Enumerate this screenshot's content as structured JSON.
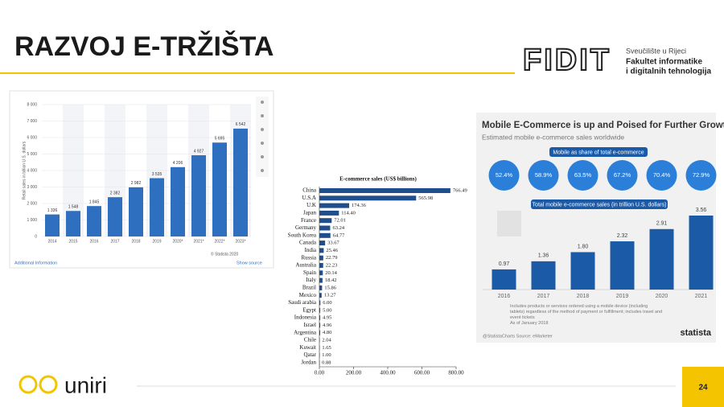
{
  "slide": {
    "title": "RAZVOJ E-TRŽIŠTA",
    "logo": "FIDIT",
    "university": "Sveučilište u Rijeci",
    "faculty_line1": "Fakultet informatike",
    "faculty_line2": "i digitalnih tehnologija",
    "footer_logo": "uniri",
    "page_number": "24"
  },
  "chart_data": [
    {
      "type": "bar",
      "ylabel": "Retail sales in billion U.S. dollars",
      "categories": [
        "2014",
        "2015",
        "2016",
        "2017",
        "2018",
        "2019",
        "2020*",
        "2021*",
        "2022*",
        "2023*"
      ],
      "values": [
        1336,
        1548,
        1845,
        2382,
        2982,
        3535,
        4206,
        4927,
        5695,
        6542
      ],
      "value_labels": [
        "1 336",
        "1 548",
        "1 845",
        "2 382",
        "2 982",
        "3 535",
        "4 206",
        "4 927",
        "5 695",
        "6 542"
      ],
      "color": "#2f6fc0",
      "ylim": [
        0,
        8000
      ],
      "yticks": [
        0,
        {
          "value": 1000,
          "label": "1 000"
        },
        {
          "value": 2000,
          "label": "2 000"
        },
        {
          "value": 3000,
          "label": "3 000"
        },
        {
          "value": 4000,
          "label": "4 000"
        },
        {
          "value": 5000,
          "label": "5 000"
        },
        {
          "value": 6000,
          "label": "6 000"
        },
        {
          "value": 7000,
          "label": "7 000"
        },
        {
          "value": 8000,
          "label": "8 000"
        }
      ],
      "source_note": "© Statista 2020",
      "additional_info": "Additional Information",
      "show_source": "Show source"
    },
    {
      "type": "hbar",
      "title": "E-commerce sales (US$ billions)",
      "categories": [
        "China",
        "U.S.A",
        "U.K",
        "Japan",
        "France",
        "Germany",
        "South Korea",
        "Canada",
        "India",
        "Russia",
        "Australia",
        "Spain",
        "Italy",
        "Brazil",
        "Mexico",
        "Saudi arabia",
        "Egypt",
        "Indonesia",
        "Israel",
        "Argentina",
        "Chile",
        "Kuwait",
        "Qatar",
        "Jordan"
      ],
      "values": [
        766.49,
        565.98,
        174.36,
        114.4,
        72.01,
        63.24,
        64.77,
        33.67,
        25.46,
        22.79,
        22.23,
        20.14,
        18.42,
        15.86,
        13.27,
        6.0,
        5.0,
        4.95,
        4.96,
        4.8,
        2.04,
        1.65,
        1.0,
        0.88
      ],
      "value_labels": [
        "766.49",
        "565.98",
        "174.36",
        "114.40",
        "72.01",
        "63.24",
        "64.77",
        "33.67",
        "25.46",
        "22.79",
        "22.23",
        "20.14",
        "18.42",
        "15.86",
        "13.27",
        "6.00",
        "5.00",
        "4.95",
        "4.96",
        "4.80",
        "2.04",
        "1.65",
        "1.00",
        "0.88"
      ],
      "color": "#1f4e8c",
      "xlim": [
        0,
        800
      ],
      "xticks": [
        {
          "value": 0,
          "label": "0.00"
        },
        {
          "value": 200,
          "label": "200.00"
        },
        {
          "value": 400,
          "label": "400.00"
        },
        {
          "value": 600,
          "label": "600.00"
        },
        {
          "value": 800,
          "label": "800.00"
        }
      ]
    },
    {
      "type": "statista",
      "title": "Mobile E-Commerce is up and Poised for Further Growth",
      "subtitle": "Estimated mobile e-commerce sales worldwide",
      "share_label": "Mobile as share of total e-commerce",
      "share_values": [
        52.4,
        58.9,
        63.5,
        67.2,
        70.4,
        72.9
      ],
      "share_value_labels": [
        "52.4%",
        "58.9%",
        "63.5%",
        "67.2%",
        "70.4%",
        "72.9%"
      ],
      "sales_label": "Total mobile e-commerce sales (in trillion U.S. dollars)",
      "categories": [
        "2016",
        "2017",
        "2018",
        "2019",
        "2020",
        "2021"
      ],
      "values": [
        0.97,
        1.36,
        1.8,
        2.32,
        2.91,
        3.56
      ],
      "value_labels": [
        "0.97",
        "1.36",
        "1.80",
        "2.32",
        "2.91",
        "3.56"
      ],
      "color": "#1a5aa6",
      "circle_color": "#2b7fd8",
      "note": "Includes products or services ordered using a mobile device (including tablets) regardless of the method of payment or fulfillment; includes travel and event tickets",
      "date_note": "As of January 2018",
      "source": "@StatistaCharts   Source: eMarketer",
      "brand": "statista"
    }
  ]
}
